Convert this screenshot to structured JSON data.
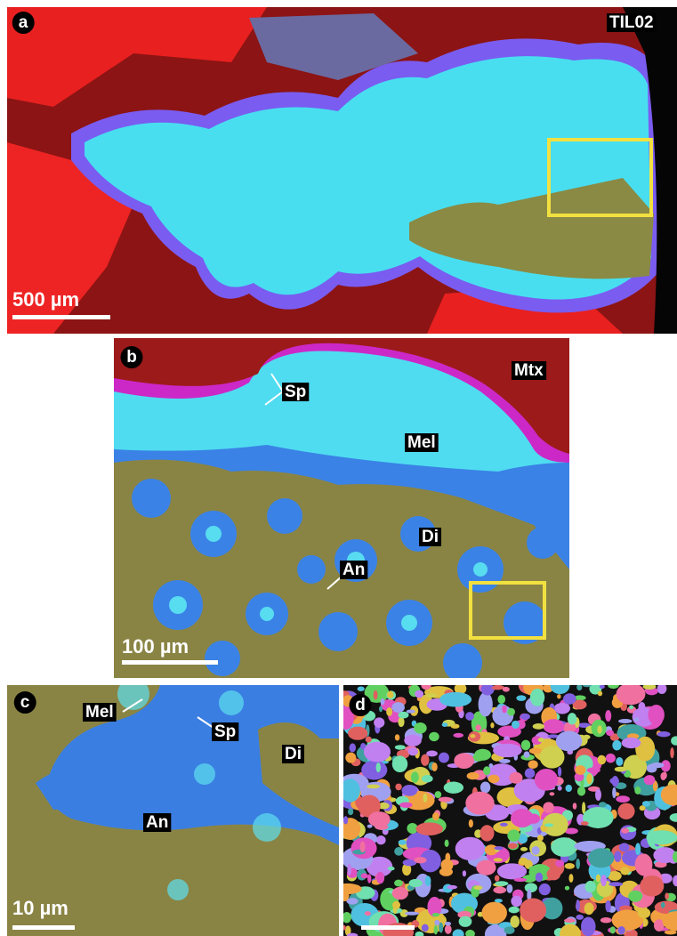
{
  "panels": [
    {
      "label": "a",
      "annotations": [
        "TIL02"
      ],
      "scale_bar": "500 µm"
    },
    {
      "label": "b",
      "annotations": [
        "Sp",
        "Mtx",
        "Mel",
        "Di",
        "An"
      ],
      "scale_bar": "100 µm"
    },
    {
      "label": "c",
      "annotations": [
        "Mel",
        "Sp",
        "Di",
        "An"
      ],
      "scale_bar": "10 µm"
    },
    {
      "label": "d"
    }
  ]
}
